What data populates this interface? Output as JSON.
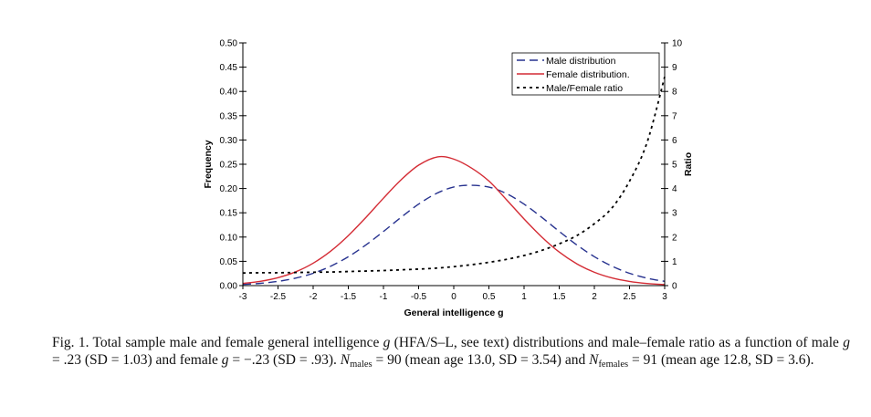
{
  "chart_data": {
    "type": "line",
    "xlabel": "General intelligence g",
    "ylabel": "Frequency",
    "y2label": "Ratio",
    "xlim": [
      -3,
      3
    ],
    "ylim": [
      0,
      0.5
    ],
    "y2lim": [
      0,
      10
    ],
    "x_ticks": [
      "-3",
      "-2.5",
      "-2",
      "-1.5",
      "-1",
      "-0.5",
      "0",
      "0.5",
      "1",
      "1.5",
      "2",
      "2.5",
      "3"
    ],
    "y_ticks": [
      "0.00",
      "0.05",
      "0.10",
      "0.15",
      "0.20",
      "0.25",
      "0.30",
      "0.35",
      "0.40",
      "0.45",
      "0.50"
    ],
    "y2_ticks": [
      "0",
      "1",
      "2",
      "3",
      "4",
      "5",
      "6",
      "7",
      "8",
      "9",
      "10"
    ],
    "legend_position": "top-right",
    "series": [
      {
        "name": "Male distribution",
        "axis": "left",
        "style": "dashed",
        "color": "#27328f",
        "x": [
          -3,
          -2.75,
          -2.5,
          -2.25,
          -2,
          -1.75,
          -1.5,
          -1.25,
          -1,
          -0.75,
          -0.5,
          -0.25,
          0,
          0.23,
          0.5,
          0.75,
          1,
          1.25,
          1.5,
          1.75,
          2,
          2.25,
          2.5,
          2.75,
          3
        ],
        "values": [
          0.0024,
          0.0047,
          0.0087,
          0.0153,
          0.0254,
          0.04,
          0.0595,
          0.0838,
          0.1115,
          0.1406,
          0.1678,
          0.1896,
          0.2032,
          0.2066,
          0.2029,
          0.1895,
          0.1678,
          0.1408,
          0.1117,
          0.0838,
          0.0596,
          0.0401,
          0.0254,
          0.0153,
          0.0087
        ]
      },
      {
        "name": "Female distribution.",
        "axis": "left",
        "style": "solid",
        "color": "#d42c35",
        "x": [
          -3,
          -2.75,
          -2.5,
          -2.25,
          -2,
          -1.75,
          -1.5,
          -1.25,
          -1,
          -0.75,
          -0.5,
          -0.23,
          0,
          0.25,
          0.5,
          0.75,
          1,
          1.25,
          1.5,
          1.75,
          2,
          2.25,
          2.5,
          2.75,
          3
        ],
        "values": [
          0.0046,
          0.0089,
          0.0164,
          0.0283,
          0.0462,
          0.0711,
          0.103,
          0.1403,
          0.1801,
          0.2178,
          0.2481,
          0.2652,
          0.2606,
          0.2424,
          0.2154,
          0.177,
          0.1373,
          0.1004,
          0.0691,
          0.0449,
          0.0275,
          0.0158,
          0.0086,
          0.0044,
          0.0021
        ]
      },
      {
        "name": "Male/Female ratio",
        "axis": "right",
        "style": "dotted",
        "color": "#000000",
        "x": [
          -3,
          -2.75,
          -2.5,
          -2.25,
          -2,
          -1.75,
          -1.5,
          -1.25,
          -1,
          -0.75,
          -0.5,
          -0.25,
          0,
          0.25,
          0.5,
          0.75,
          1,
          1.25,
          1.5,
          1.75,
          2,
          2.25,
          2.5,
          2.75,
          3
        ],
        "values": [
          0.52,
          0.53,
          0.53,
          0.54,
          0.55,
          0.56,
          0.58,
          0.6,
          0.62,
          0.65,
          0.68,
          0.72,
          0.78,
          0.86,
          0.96,
          1.08,
          1.24,
          1.45,
          1.72,
          2.06,
          2.55,
          3.2,
          4.3,
          5.9,
          8.6
        ]
      }
    ]
  },
  "caption": {
    "fig_label": "Fig. 1.",
    "p1": "Total sample male and female general intelligence ",
    "g": "g",
    "p2": " (HFA/S–L, see text) distributions and male–female ratio as a function of male ",
    "p3": " = .23 (SD = 1.03) and female ",
    "p4": " = −.23 (SD = .93). ",
    "N": "N",
    "males_sub": "males",
    "p5": " = 90 (mean age 13.0, SD = 3.54) and ",
    "females_sub": "females",
    "p6": " = 91 (mean age 12.8, SD = 3.6)."
  }
}
